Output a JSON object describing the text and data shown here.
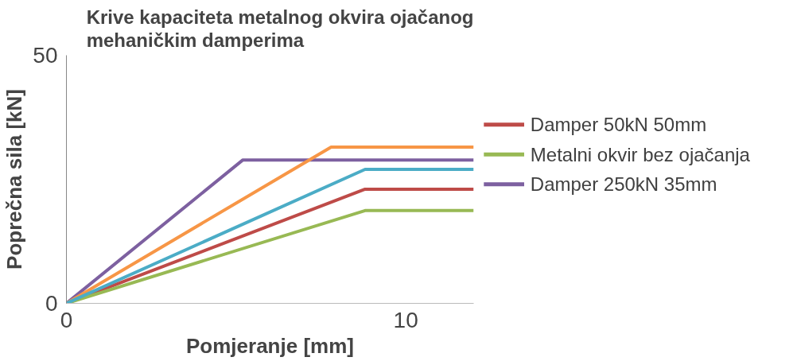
{
  "chart_data": {
    "type": "line",
    "title": "Krive kapaciteta metalnog okvira ojačanog\nmehaničkim damperima",
    "xlabel": "Pomjeranje [mm]",
    "ylabel": "Poprečna sila [kN]",
    "xlim": [
      0,
      12
    ],
    "xticks": [
      0,
      10
    ],
    "ylim": [
      0,
      50
    ],
    "yticks": [
      0,
      50
    ],
    "grid": false,
    "legend": "right",
    "marker": "none",
    "line_style": "solid",
    "series": [
      {
        "name": "Damper 50kN 50mm",
        "color": "#be4b48",
        "x": [
          0,
          8.8,
          12
        ],
        "values": [
          0,
          23,
          23
        ]
      },
      {
        "name": "Metalni okvir bez ojačanja",
        "color": "#98b954",
        "x": [
          0,
          8.8,
          12
        ],
        "values": [
          0,
          18.7,
          18.7
        ]
      },
      {
        "name": "Damper 250kN 35mm",
        "color": "#7d60a0",
        "x": [
          0,
          5.2,
          12
        ],
        "values": [
          0,
          28.9,
          28.9
        ]
      },
      {
        "color": "#f79646",
        "x": [
          0,
          7.8,
          12
        ],
        "values": [
          0,
          31.5,
          31.5
        ]
      },
      {
        "color": "#4bacc6",
        "x": [
          0,
          8.8,
          12
        ],
        "values": [
          0,
          27,
          27
        ]
      }
    ]
  }
}
